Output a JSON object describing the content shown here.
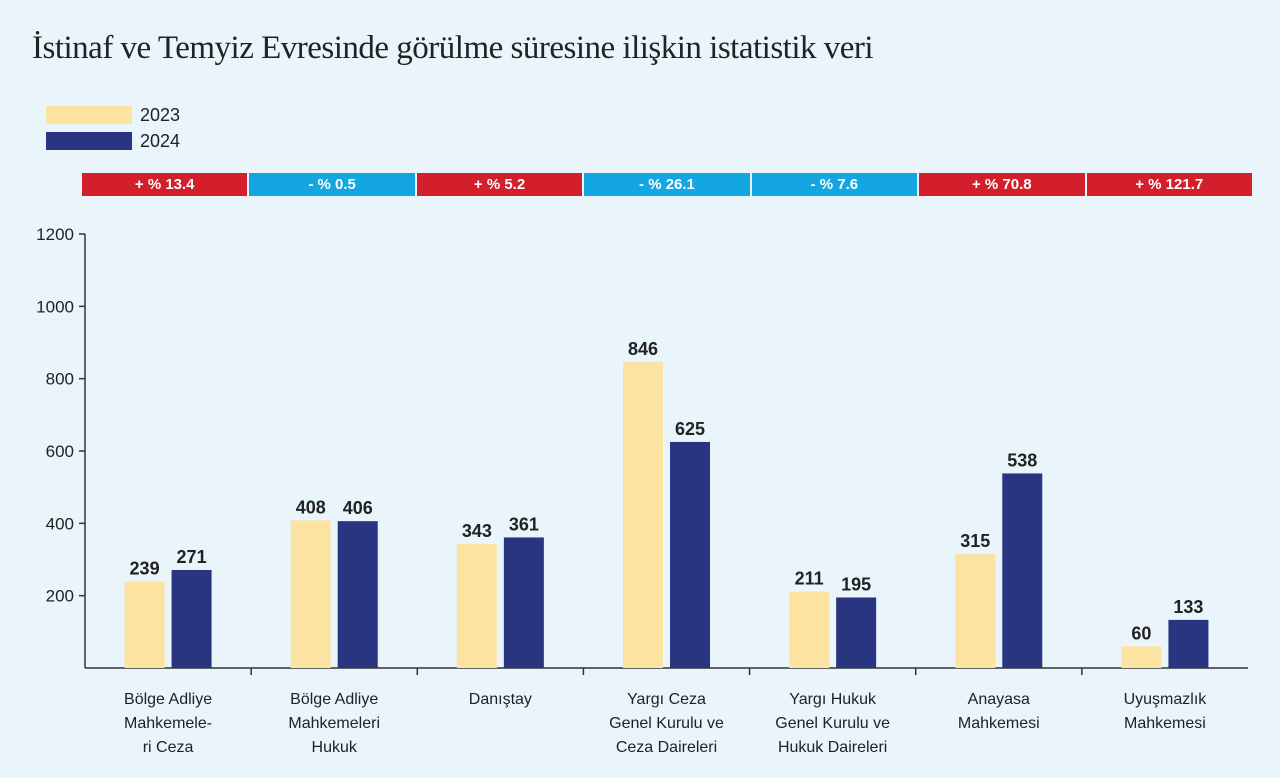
{
  "title": "İstinaf ve Temyiz Evresinde görülme süresine ilişkin istatistik veri",
  "legend": [
    {
      "label": "2023",
      "color": "#fde3a1"
    },
    {
      "label": "2024",
      "color": "#293580"
    }
  ],
  "changes": [
    {
      "label": "+ % 13.4",
      "color": "#d31f2b"
    },
    {
      "label": "- % 0.5",
      "color": "#14a6e0"
    },
    {
      "label": "+ % 5.2",
      "color": "#d31f2b"
    },
    {
      "label": "- % 26.1",
      "color": "#14a6e0"
    },
    {
      "label": "- % 7.6",
      "color": "#14a6e0"
    },
    {
      "label": "+ % 70.8",
      "color": "#d31f2b"
    },
    {
      "label": "+ % 121.7",
      "color": "#d31f2b"
    }
  ],
  "chart_data": {
    "type": "bar",
    "categories": [
      "Bölge Adliye\nMahkemele-\nri Ceza",
      "Bölge Adliye\nMahkemeleri\nHukuk",
      "Danıştay",
      "Yargı Ceza\nGenel Kurulu ve\nCeza Daireleri",
      "Yargı Hukuk\nGenel Kurulu ve\nHukuk Daireleri",
      "Anayasa\nMahkemesi",
      "Uyuşmazlık\nMahkemesi"
    ],
    "series": [
      {
        "name": "2023",
        "values": [
          239,
          408,
          343,
          846,
          211,
          315,
          60
        ]
      },
      {
        "name": "2024",
        "values": [
          271,
          406,
          361,
          625,
          195,
          538,
          133
        ]
      }
    ],
    "yticks": [
      200,
      400,
      600,
      800,
      1000,
      1200
    ],
    "ylim": [
      0,
      1200
    ],
    "title": "İstinaf ve Temyiz Evresinde görülme süresine ilişkin istatistik veri",
    "xlabel": "",
    "ylabel": ""
  }
}
